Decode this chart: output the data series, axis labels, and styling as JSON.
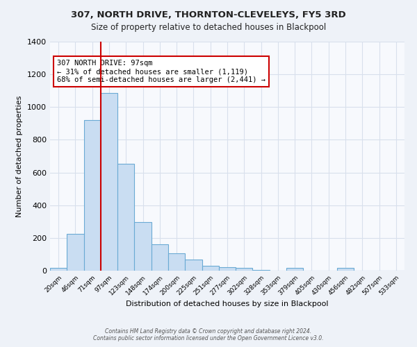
{
  "title": "307, NORTH DRIVE, THORNTON-CLEVELEYS, FY5 3RD",
  "subtitle": "Size of property relative to detached houses in Blackpool",
  "xlabel": "Distribution of detached houses by size in Blackpool",
  "ylabel": "Number of detached properties",
  "bar_labels": [
    "20sqm",
    "46sqm",
    "71sqm",
    "97sqm",
    "123sqm",
    "148sqm",
    "174sqm",
    "200sqm",
    "225sqm",
    "251sqm",
    "277sqm",
    "302sqm",
    "328sqm",
    "353sqm",
    "379sqm",
    "405sqm",
    "430sqm",
    "456sqm",
    "482sqm",
    "507sqm",
    "533sqm"
  ],
  "bar_heights": [
    15,
    225,
    920,
    1085,
    655,
    295,
    160,
    105,
    70,
    30,
    20,
    15,
    5,
    0,
    15,
    0,
    0,
    15,
    0,
    0,
    0
  ],
  "bar_color": "#c9ddf2",
  "bar_edge_color": "#6aaad4",
  "marker_label": "307 NORTH DRIVE: 97sqm",
  "annotation_line1": "← 31% of detached houses are smaller (1,119)",
  "annotation_line2": "68% of semi-detached houses are larger (2,441) →",
  "annotation_box_color": "#ffffff",
  "annotation_box_edge": "#cc0000",
  "marker_color": "#cc0000",
  "ylim": [
    0,
    1400
  ],
  "yticks": [
    0,
    200,
    400,
    600,
    800,
    1000,
    1200,
    1400
  ],
  "footer1": "Contains HM Land Registry data © Crown copyright and database right 2024.",
  "footer2": "Contains public sector information licensed under the Open Government Licence v3.0.",
  "bg_color": "#eef2f8",
  "plot_bg_color": "#f7f9fd",
  "grid_color": "#d8e0ec"
}
